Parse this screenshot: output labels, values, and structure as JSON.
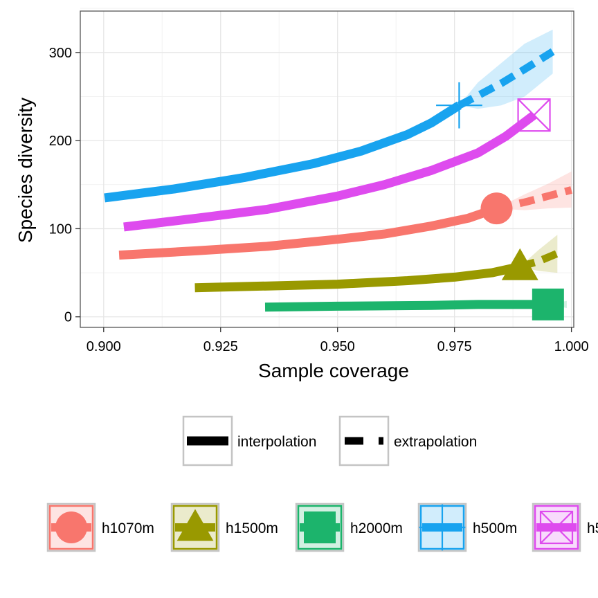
{
  "chart_data": {
    "type": "line",
    "xlabel": "Sample coverage",
    "ylabel": "Species diversity",
    "xlim": [
      0.895,
      1.0005
    ],
    "ylim": [
      -12,
      347
    ],
    "x_ticks": [
      0.9,
      0.925,
      0.95,
      0.975,
      1.0
    ],
    "x_tick_labels": [
      "0.900",
      "0.925",
      "0.950",
      "0.975",
      "1.000"
    ],
    "y_ticks": [
      0,
      100,
      200,
      300
    ],
    "y_tick_labels": [
      "0",
      "100",
      "200",
      "300"
    ],
    "grid": true,
    "legend_placement": "bottom",
    "method_legend": [
      {
        "key": "interpolation",
        "label": "interpolation"
      },
      {
        "key": "extrapolation",
        "label": "extrapolation"
      }
    ],
    "series": [
      {
        "name": "h1070m",
        "color": "#F8766D",
        "marker": "circle",
        "interpolation": [
          [
            0.9033,
            70
          ],
          [
            0.92,
            75
          ],
          [
            0.935,
            80
          ],
          [
            0.95,
            88
          ],
          [
            0.96,
            94
          ],
          [
            0.97,
            103
          ],
          [
            0.978,
            112
          ],
          [
            0.984,
            123
          ]
        ],
        "observed": [
          0.984,
          123
        ],
        "extrapolation": [
          [
            0.984,
            123
          ],
          [
            0.99,
            130
          ],
          [
            0.995,
            137
          ],
          [
            1.0,
            144
          ]
        ],
        "band": [
          [
            0.984,
            123,
            123
          ],
          [
            0.99,
            121,
            139
          ],
          [
            0.995,
            123,
            151
          ],
          [
            1.0,
            124,
            165
          ]
        ]
      },
      {
        "name": "h1500m",
        "color": "#999900",
        "marker": "triangle",
        "interpolation": [
          [
            0.9195,
            33
          ],
          [
            0.935,
            35
          ],
          [
            0.95,
            37
          ],
          [
            0.965,
            41
          ],
          [
            0.975,
            45
          ],
          [
            0.983,
            50
          ],
          [
            0.989,
            57
          ]
        ],
        "observed": [
          0.989,
          57
        ],
        "extrapolation": [
          [
            0.989,
            57
          ],
          [
            0.993,
            63
          ],
          [
            0.997,
            72
          ]
        ],
        "band": [
          [
            0.989,
            57,
            57
          ],
          [
            0.993,
            52,
            76
          ],
          [
            0.997,
            50,
            93
          ]
        ]
      },
      {
        "name": "h2000m",
        "color": "#1CB46C",
        "marker": "square",
        "interpolation": [
          [
            0.9345,
            11
          ],
          [
            0.95,
            12
          ],
          [
            0.97,
            13
          ],
          [
            0.98,
            14
          ],
          [
            0.995,
            14
          ]
        ],
        "observed": [
          0.995,
          14
        ],
        "extrapolation": [
          [
            0.995,
            14
          ],
          [
            0.999,
            14
          ]
        ],
        "band": [
          [
            0.995,
            14,
            14
          ],
          [
            0.999,
            10,
            18
          ]
        ]
      },
      {
        "name": "h500m",
        "color": "#18A3EF",
        "marker": "plus",
        "interpolation": [
          [
            0.9002,
            135
          ],
          [
            0.915,
            145
          ],
          [
            0.93,
            158
          ],
          [
            0.945,
            174
          ],
          [
            0.955,
            188
          ],
          [
            0.965,
            207
          ],
          [
            0.97,
            220
          ],
          [
            0.976,
            240
          ]
        ],
        "observed": [
          0.976,
          240
        ],
        "extrapolation": [
          [
            0.976,
            240
          ],
          [
            0.98,
            251
          ],
          [
            0.985,
            265
          ],
          [
            0.99,
            281
          ],
          [
            0.996,
            301
          ]
        ],
        "band": [
          [
            0.976,
            240,
            240
          ],
          [
            0.98,
            236,
            266
          ],
          [
            0.985,
            240,
            288
          ],
          [
            0.99,
            250,
            310
          ],
          [
            0.996,
            276,
            326
          ]
        ]
      },
      {
        "name": "h5",
        "color": "#DE4BEE",
        "marker": "boxcross",
        "interpolation": [
          [
            0.9043,
            102
          ],
          [
            0.92,
            112
          ],
          [
            0.935,
            122
          ],
          [
            0.95,
            137
          ],
          [
            0.96,
            150
          ],
          [
            0.97,
            166
          ],
          [
            0.98,
            186
          ],
          [
            0.986,
            205
          ],
          [
            0.992,
            229
          ]
        ],
        "observed": [
          0.992,
          229
        ],
        "extrapolation": [],
        "band": []
      }
    ]
  }
}
